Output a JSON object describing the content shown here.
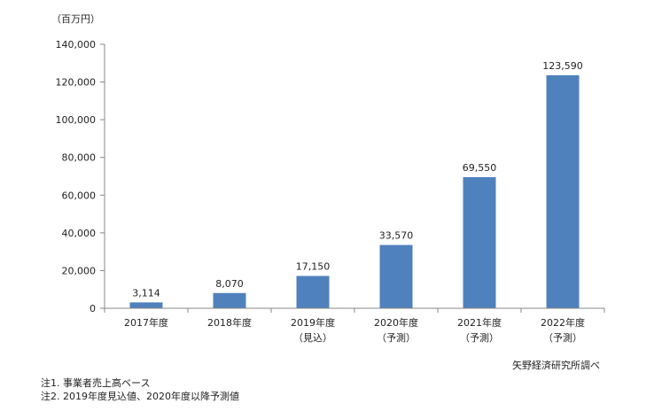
{
  "chart_data": {
    "type": "bar",
    "unit_label": "（百万円）",
    "categories": [
      [
        "2017年度"
      ],
      [
        "2018年度"
      ],
      [
        "2019年度",
        "（見込）"
      ],
      [
        "2020年度",
        "（予測）"
      ],
      [
        "2021年度",
        "（予測）"
      ],
      [
        "2022年度",
        "（予測）"
      ]
    ],
    "values": [
      3114,
      8070,
      17150,
      33570,
      69550,
      123590
    ],
    "value_labels": [
      "3,114",
      "8,070",
      "17,150",
      "33,570",
      "69,550",
      "123,590"
    ],
    "ylim": [
      0,
      140000
    ],
    "yticks": [
      0,
      20000,
      40000,
      60000,
      80000,
      100000,
      120000,
      140000
    ],
    "ytick_labels": [
      "0",
      "20,000",
      "40,000",
      "60,000",
      "80,000",
      "100,000",
      "120,000",
      "140,000"
    ],
    "bar_color": "#4f81bd",
    "grid": false,
    "legend": false
  },
  "notes": [
    "注1. 事業者売上高ベース",
    "注2. 2019年度見込値、2020年度以降予測値"
  ],
  "source": "矢野経済研究所調べ"
}
